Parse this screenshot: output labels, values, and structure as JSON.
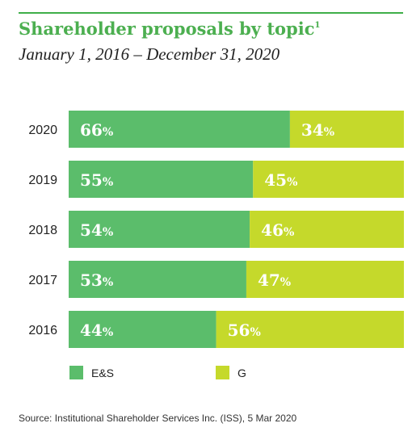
{
  "header": {
    "title": "Shareholder proposals by topic",
    "title_footnote": "1",
    "subtitle": "January 1, 2016 – December 31, 2020"
  },
  "colors": {
    "es": "#5bbd6b",
    "g": "#c5d92b",
    "rule": "#3fae49"
  },
  "chart_data": {
    "type": "bar",
    "orientation": "horizontal",
    "stacked": true,
    "categories": [
      "2020",
      "2019",
      "2018",
      "2017",
      "2016"
    ],
    "series": [
      {
        "name": "E&S",
        "values": [
          66,
          55,
          54,
          53,
          44
        ]
      },
      {
        "name": "G",
        "values": [
          34,
          45,
          46,
          47,
          56
        ]
      }
    ],
    "value_suffix": "%",
    "xlim": [
      0,
      100
    ],
    "grid": false,
    "legend_position": "bottom-left"
  },
  "legend": {
    "es_label": "E&S",
    "g_label": "G"
  },
  "source": "Source: Institutional Shareholder Services Inc. (ISS), 5 Mar 2020"
}
